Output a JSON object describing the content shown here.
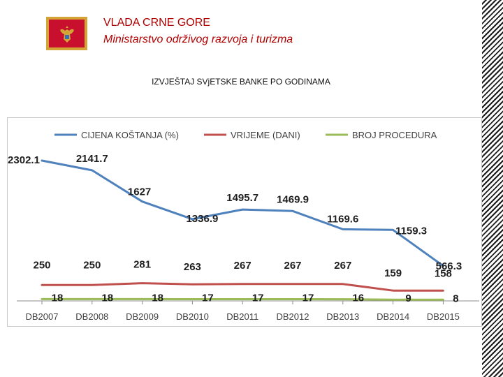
{
  "header": {
    "government": "VLADA CRNE GORE",
    "ministry": "Ministarstvo održivog razvoja i turizma",
    "report_title": "IZVJEŠTAJ SVjETSKE BANKE PO GODINAMA"
  },
  "colors": {
    "series1": "#4f81bd",
    "series2": "#c0504d",
    "series3": "#9bbb59",
    "header_text": "#b00000",
    "flag_red": "#c8102e",
    "flag_gold": "#d4a437"
  },
  "icons": {
    "flag": "montenegro-flag-icon"
  },
  "chart_data": {
    "type": "line",
    "title": "",
    "xlabel": "",
    "ylabel": "",
    "categories": [
      "DB2007",
      "DB2008",
      "DB2009",
      "DB2010",
      "DB2011",
      "DB2012",
      "DB2013",
      "DB2014",
      "DB2015"
    ],
    "series": [
      {
        "name": "CIJENA KOŠTANJA (%)",
        "values": [
          2302.1,
          2141.7,
          1627,
          1336.9,
          1495.7,
          1469.9,
          1169.6,
          1159.3,
          566.3
        ]
      },
      {
        "name": "VRIJEME (DANI)",
        "values": [
          250,
          250,
          281,
          263,
          267,
          267,
          267,
          159,
          158
        ]
      },
      {
        "name": "BROJ PROCEDURA",
        "values": [
          18,
          18,
          18,
          17,
          17,
          17,
          16,
          9,
          8
        ]
      }
    ],
    "data_labels": [
      [
        "2302.1",
        "2141.7",
        "1627",
        "1336.9",
        "1495.7",
        "1469.9",
        "1169.6",
        "1159.3",
        "566.3"
      ],
      [
        "250",
        "250",
        "281",
        "263",
        "267",
        "267",
        "267",
        "159",
        "158"
      ],
      [
        "18",
        "18",
        "18",
        "17",
        "17",
        "17",
        "16",
        "9",
        "8"
      ]
    ],
    "ylim": [
      0,
      2500
    ],
    "legend": "top",
    "grid": false
  }
}
